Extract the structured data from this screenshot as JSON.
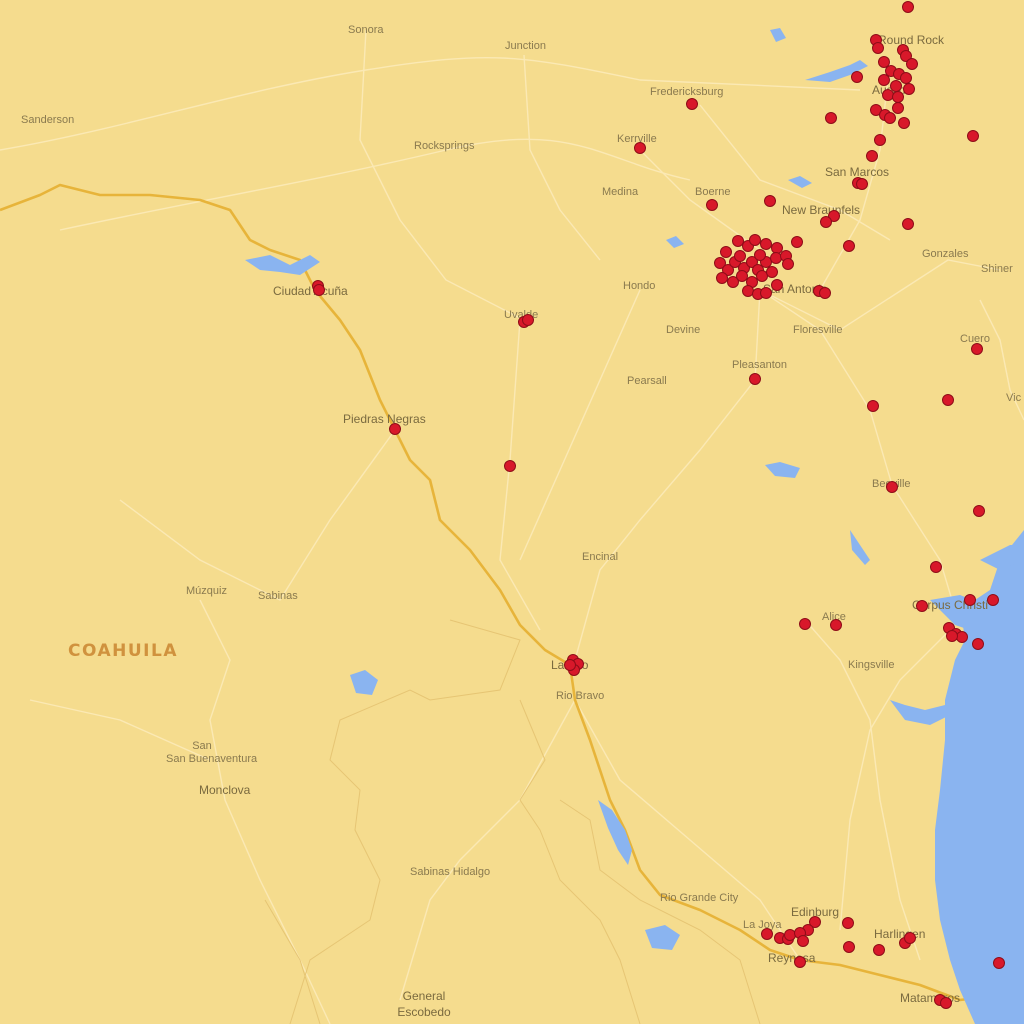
{
  "map": {
    "region_label": "COAHUILA",
    "colors": {
      "land": "#f5dc8e",
      "water": "#8ab4f0",
      "border": "#e7b43a",
      "roads": "#fbe9b4",
      "marker_fill": "#d8182a",
      "marker_stroke": "#8e0d18"
    },
    "places": [
      {
        "name": "Sonora"
      },
      {
        "name": "Junction"
      },
      {
        "name": "Sanderson"
      },
      {
        "name": "Fredericksburg"
      },
      {
        "name": "Rocksprings"
      },
      {
        "name": "Kerrville"
      },
      {
        "name": "Round Rock"
      },
      {
        "name": "Austin"
      },
      {
        "name": "San Marcos"
      },
      {
        "name": "Medina"
      },
      {
        "name": "Boerne"
      },
      {
        "name": "New Braunfels"
      },
      {
        "name": "Gonzales"
      },
      {
        "name": "Shiner"
      },
      {
        "name": "Ciudad Acuña"
      },
      {
        "name": "Uvalde"
      },
      {
        "name": "Hondo"
      },
      {
        "name": "San Antonio"
      },
      {
        "name": "Devine"
      },
      {
        "name": "Floresville"
      },
      {
        "name": "Cuero"
      },
      {
        "name": "Pleasanton"
      },
      {
        "name": "Pearsall"
      },
      {
        "name": "Piedras Negras"
      },
      {
        "name": "Beeville"
      },
      {
        "name": "Encinal"
      },
      {
        "name": "Corpus Christi"
      },
      {
        "name": "Alice"
      },
      {
        "name": "Múzquiz"
      },
      {
        "name": "Sabinas"
      },
      {
        "name": "Laredo"
      },
      {
        "name": "Kingsville"
      },
      {
        "name": "Rio Bravo"
      },
      {
        "name": "San Buenaventura"
      },
      {
        "name": "Monclova"
      },
      {
        "name": "Sabinas Hidalgo"
      },
      {
        "name": "Rio Grande City"
      },
      {
        "name": "Edinburg"
      },
      {
        "name": "La Joya"
      },
      {
        "name": "Harlingen"
      },
      {
        "name": "Reynosa"
      },
      {
        "name": "General Escobedo"
      },
      {
        "name": "Matamoros"
      },
      {
        "name": "Vic"
      }
    ]
  }
}
